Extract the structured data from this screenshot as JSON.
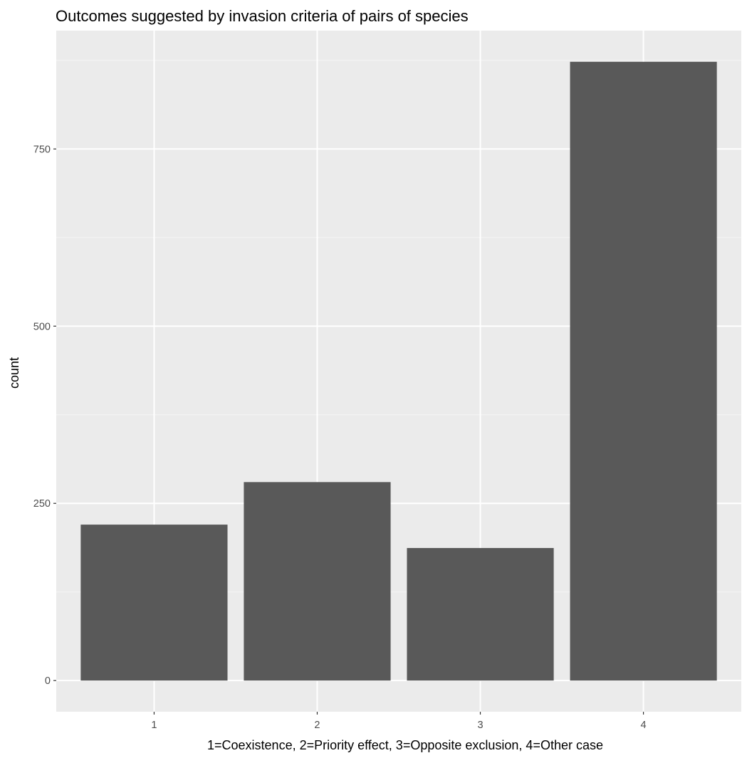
{
  "chart_data": {
    "type": "bar",
    "title": "Outcomes suggested by invasion criteria of pairs of species",
    "xlabel": "1=Coexistence, 2=Priority effect, 3=Opposite exclusion, 4=Other case",
    "ylabel": "count",
    "categories": [
      "1",
      "2",
      "3",
      "4"
    ],
    "values": [
      220,
      280,
      187,
      873
    ],
    "ylim": [
      -44,
      917
    ],
    "yticks": [
      0,
      250,
      500,
      750
    ],
    "ytick_labels": [
      "0",
      "250",
      "500",
      "750"
    ],
    "grid": true,
    "legend": "none",
    "colors": {
      "bar": "#595959",
      "panel": "#ebebeb",
      "grid_major": "#ffffff",
      "grid_minor": "#f5f5f5",
      "tick_text": "#4d4d4d",
      "axis_ticks": "#333333"
    }
  }
}
